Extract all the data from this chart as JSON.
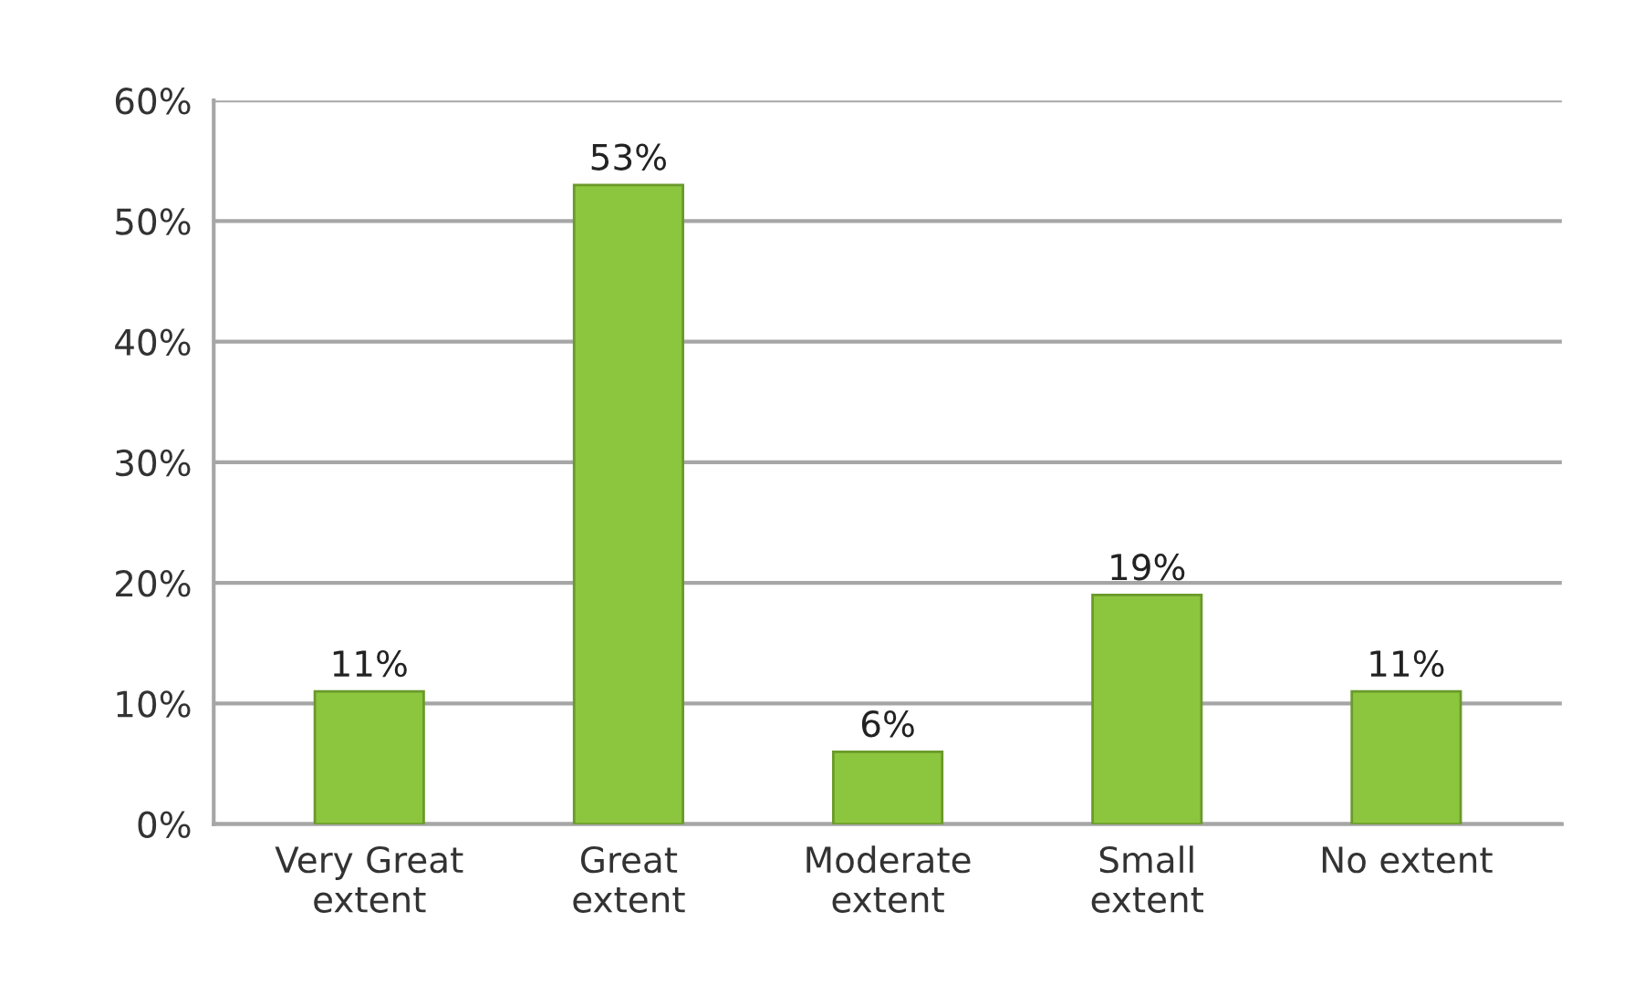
{
  "chart_data": {
    "type": "bar",
    "categories": [
      "Very Great\nextent",
      "Great\nextent",
      "Moderate\nextent",
      "Small\nextent",
      "No extent"
    ],
    "values": [
      11,
      53,
      6,
      19,
      11
    ],
    "value_labels": [
      "11%",
      "53%",
      "6%",
      "19%",
      "11%"
    ],
    "color": "#8cc63f",
    "ylim": [
      0,
      60
    ],
    "yticks": [
      {
        "value": 0,
        "label": "0%"
      },
      {
        "value": 10,
        "label": "10%"
      },
      {
        "value": 20,
        "label": "20%"
      },
      {
        "value": 30,
        "label": "30%"
      },
      {
        "value": 40,
        "label": "40%"
      },
      {
        "value": 50,
        "label": "50%"
      },
      {
        "value": 60,
        "label": "60%"
      }
    ],
    "grid": "y"
  }
}
